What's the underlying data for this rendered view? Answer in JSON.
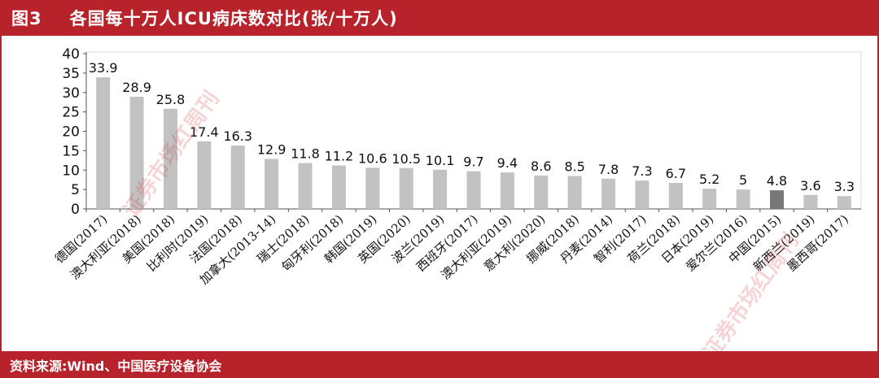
{
  "header": {
    "figure_label": "图3",
    "title": "各国每十万人ICU病床数对比(张/十万人)"
  },
  "source": {
    "text": "资料来源:Wind、中国医疗设备协会"
  },
  "watermark": {
    "text": "证券市场红周刊"
  },
  "colors": {
    "brand_red": "#b8222b",
    "bar_default": "#c2c2c2",
    "bar_highlight": "#777777"
  },
  "chart_data": {
    "type": "bar",
    "title": "各国每十万人ICU病床数对比(张/十万人)",
    "xlabel": "",
    "ylabel": "",
    "ylim": [
      0,
      40
    ],
    "yticks": [
      0,
      5,
      10,
      15,
      20,
      25,
      30,
      35,
      40
    ],
    "grid": false,
    "legend": "none",
    "categories": [
      "德国(2017)",
      "澳大利亚(2018)",
      "美国(2018)",
      "比利时(2019)",
      "法国(2018)",
      "加拿大(2013-14)",
      "瑞士(2018)",
      "匈牙利(2018)",
      "韩国(2019)",
      "英国(2020)",
      "波兰(2019)",
      "西班牙(2017)",
      "澳大利亚(2019)",
      "意大利(2020)",
      "挪威(2018)",
      "丹麦(2014)",
      "智利(2017)",
      "荷兰(2018)",
      "日本(2019)",
      "爱尔兰(2016)",
      "中国(2015)",
      "新西兰(2019)",
      "墨西哥(2017)"
    ],
    "values": [
      33.9,
      28.9,
      25.8,
      17.4,
      16.3,
      12.9,
      11.8,
      11.2,
      10.6,
      10.5,
      10.1,
      9.7,
      9.4,
      8.6,
      8.5,
      7.8,
      7.3,
      6.7,
      5.2,
      5,
      4.8,
      3.6,
      3.3
    ],
    "value_labels": [
      "33.9",
      "28.9",
      "25.8",
      "17.4",
      "16.3",
      "12.9",
      "11.8",
      "11.2",
      "10.6",
      "10.5",
      "10.1",
      "9.7",
      "9.4",
      "8.6",
      "8.5",
      "7.8",
      "7.3",
      "6.7",
      "5.2",
      "5",
      "4.8",
      "3.6",
      "3.3"
    ],
    "highlight_category": "中国(2015)"
  }
}
